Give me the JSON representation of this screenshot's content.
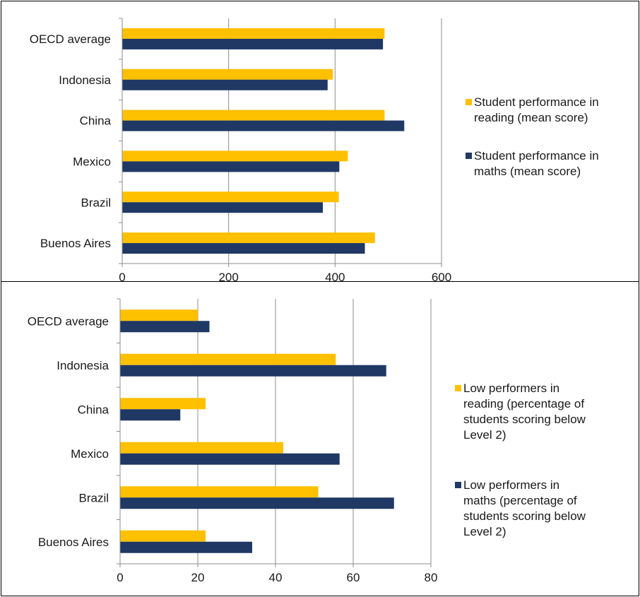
{
  "colors": {
    "reading": "#FFC000",
    "maths": "#1F3864",
    "grid": "#8c8c8c",
    "axis": "#8c8c8c"
  },
  "chart_data": [
    {
      "type": "bar",
      "orientation": "horizontal",
      "categories": [
        "OECD average",
        "Indonesia",
        "China",
        "Mexico",
        "Brazil",
        "Buenos Aires"
      ],
      "series": [
        {
          "name": "Student performance in reading (mean score)",
          "values": [
            493,
            396,
            493,
            424,
            407,
            475
          ]
        },
        {
          "name": "Student performance in maths (mean score)",
          "values": [
            490,
            386,
            530,
            408,
            377,
            456
          ]
        }
      ],
      "legend_lines": [
        [
          "Student performance in",
          "reading (mean score)"
        ],
        [
          "Student performance in",
          "maths (mean score)"
        ]
      ],
      "xlim": [
        0,
        600
      ],
      "xticks": [
        0,
        200,
        400,
        600
      ],
      "grid": true,
      "legend_position": "right"
    },
    {
      "type": "bar",
      "orientation": "horizontal",
      "categories": [
        "OECD average",
        "Indonesia",
        "China",
        "Mexico",
        "Brazil",
        "Buenos Aires"
      ],
      "series": [
        {
          "name": "Low performers in reading (percentage of students scoring below Level 2)",
          "values": [
            20,
            55.5,
            22,
            42,
            51,
            22
          ]
        },
        {
          "name": "Low performers in maths (percentage of students scoring below Level 2)",
          "values": [
            23,
            68.5,
            15.5,
            56.5,
            70.5,
            34
          ]
        }
      ],
      "legend_lines": [
        [
          "Low performers in",
          "reading (percentage of",
          "students scoring below",
          "Level 2)"
        ],
        [
          "Low performers in",
          "maths (percentage of",
          "students scoring below",
          "Level 2)"
        ]
      ],
      "xlim": [
        0,
        80
      ],
      "xticks": [
        0,
        20,
        40,
        60,
        80
      ],
      "grid": true,
      "legend_position": "right"
    }
  ]
}
